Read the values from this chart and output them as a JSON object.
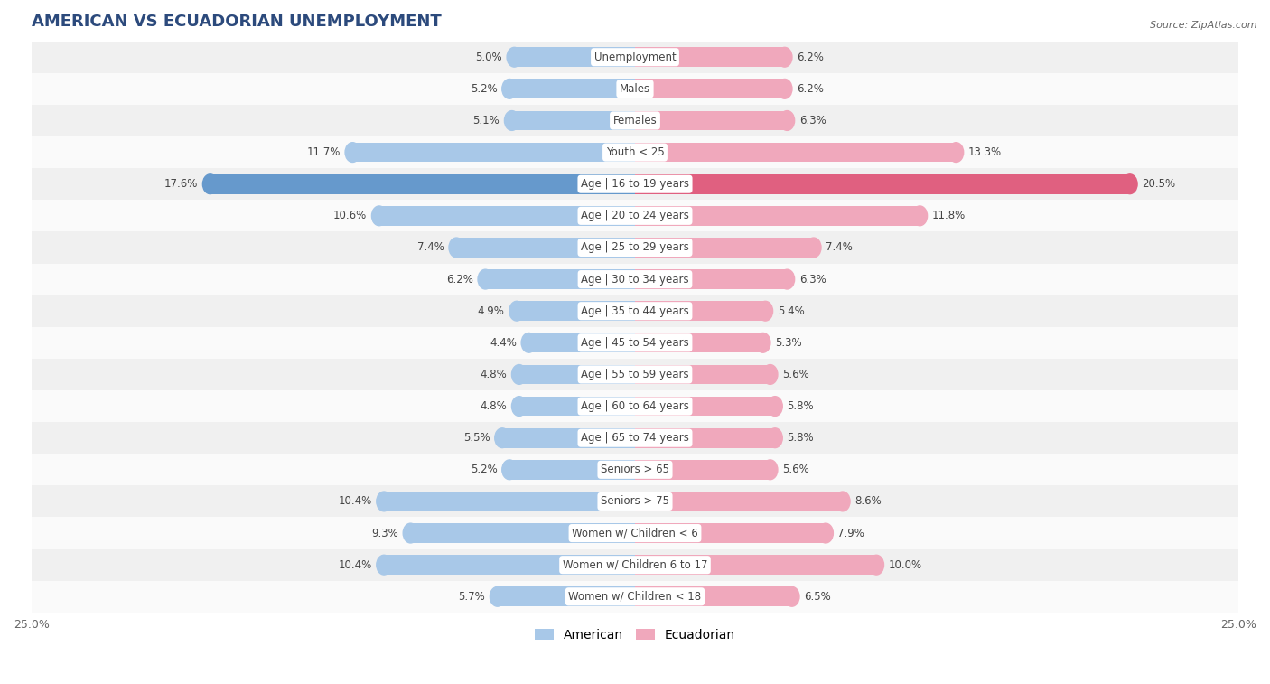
{
  "title": "AMERICAN VS ECUADORIAN UNEMPLOYMENT",
  "source": "Source: ZipAtlas.com",
  "categories": [
    "Unemployment",
    "Males",
    "Females",
    "Youth < 25",
    "Age | 16 to 19 years",
    "Age | 20 to 24 years",
    "Age | 25 to 29 years",
    "Age | 30 to 34 years",
    "Age | 35 to 44 years",
    "Age | 45 to 54 years",
    "Age | 55 to 59 years",
    "Age | 60 to 64 years",
    "Age | 65 to 74 years",
    "Seniors > 65",
    "Seniors > 75",
    "Women w/ Children < 6",
    "Women w/ Children 6 to 17",
    "Women w/ Children < 18"
  ],
  "american": [
    5.0,
    5.2,
    5.1,
    11.7,
    17.6,
    10.6,
    7.4,
    6.2,
    4.9,
    4.4,
    4.8,
    4.8,
    5.5,
    5.2,
    10.4,
    9.3,
    10.4,
    5.7
  ],
  "ecuadorian": [
    6.2,
    6.2,
    6.3,
    13.3,
    20.5,
    11.8,
    7.4,
    6.3,
    5.4,
    5.3,
    5.6,
    5.8,
    5.8,
    5.6,
    8.6,
    7.9,
    10.0,
    6.5
  ],
  "american_color_normal": "#a8c8e8",
  "american_color_highlight": "#6699cc",
  "ecuadorian_color_normal": "#f0a8bc",
  "ecuadorian_color_highlight": "#e06080",
  "highlight_indices": [
    4
  ],
  "bar_height": 0.62,
  "xlim": 25.0,
  "bg_color": "#ffffff",
  "row_colors": [
    "#f0f0f0",
    "#fafafa"
  ],
  "label_color": "#444444",
  "value_color": "#444444",
  "title_color": "#2c4a7c",
  "legend_american": "American",
  "legend_ecuadorian": "Ecuadorian"
}
